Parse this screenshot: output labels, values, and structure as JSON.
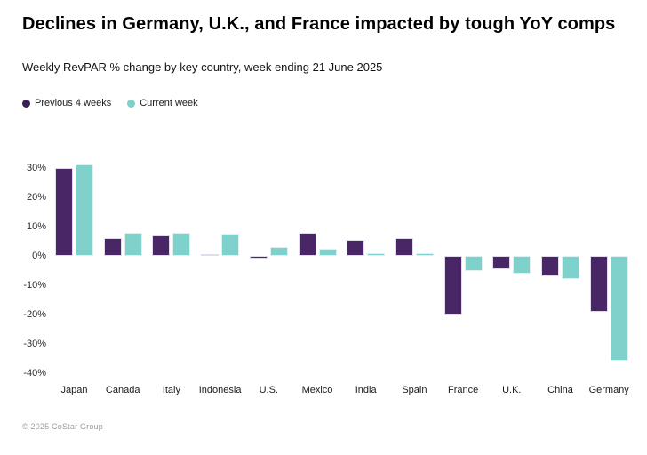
{
  "header": {
    "title": "Declines in Germany, U.K., and France impacted by tough YoY comps",
    "subtitle": "Weekly RevPAR % change by key country, week ending 21 June 2025"
  },
  "legend": {
    "items": [
      {
        "label": "Previous 4 weeks",
        "color": "#3a1f56"
      },
      {
        "label": "Current week",
        "color": "#7fd1cb"
      }
    ]
  },
  "chart_data": {
    "type": "bar",
    "title": "Declines in Germany, U.K., and France impacted by tough YoY comps",
    "subtitle": "Weekly RevPAR % change by key country, week ending 21 June 2025",
    "categories": [
      "Japan",
      "Canada",
      "Italy",
      "Indonesia",
      "U.S.",
      "Mexico",
      "India",
      "Spain",
      "France",
      "U.K.",
      "China",
      "Germany"
    ],
    "series": [
      {
        "name": "Previous 4 weeks",
        "color": "#492666",
        "values": [
          30,
          6,
          7,
          0.5,
          -1,
          8,
          5.5,
          6,
          -20,
          -4.5,
          -7,
          -19
        ]
      },
      {
        "name": "Current week",
        "color": "#7fd1cb",
        "values": [
          31,
          8,
          8,
          7.5,
          3,
          2.5,
          1,
          1,
          -5,
          -6,
          -8,
          -35.5
        ]
      }
    ],
    "xlabel": "",
    "ylabel": "",
    "y_ticks": [
      30,
      20,
      10,
      0,
      -10,
      -20,
      -30,
      -40
    ],
    "y_tick_suffix": "%",
    "ylim": [
      -40,
      32
    ],
    "grid": false,
    "legend_position": "top-left"
  },
  "footer": {
    "copyright": "© 2025 CoStar Group"
  }
}
